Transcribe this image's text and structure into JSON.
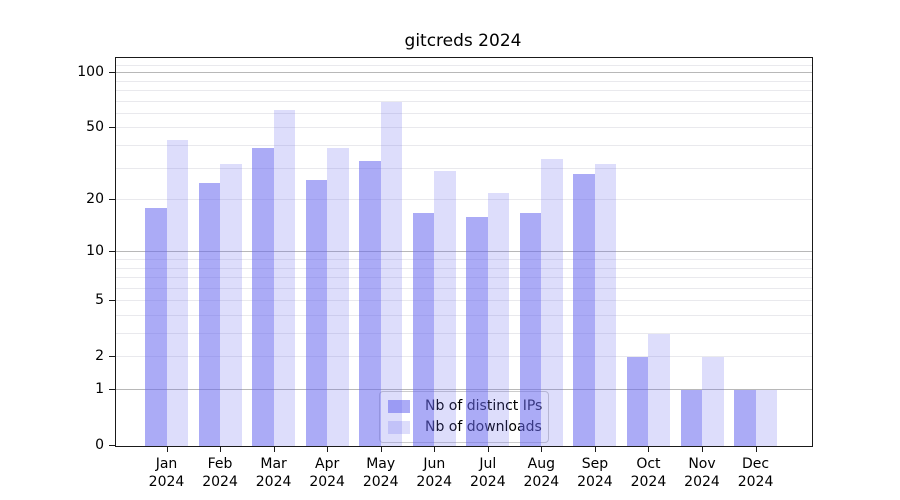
{
  "chart_data": {
    "type": "bar",
    "title": "gitcreds 2024",
    "categories": [
      "Jan",
      "Feb",
      "Mar",
      "Apr",
      "May",
      "Jun",
      "Jul",
      "Aug",
      "Sep",
      "Oct",
      "Nov",
      "Dec"
    ],
    "year": "2024",
    "series": [
      {
        "name": "Nb of distinct IPs",
        "color": "rgba(102,102,238,0.55)",
        "values": [
          18,
          25,
          39,
          26,
          33,
          17,
          16,
          17,
          28,
          2,
          1,
          1
        ]
      },
      {
        "name": "Nb of downloads",
        "color": "rgba(102,102,238,0.22)",
        "values": [
          43,
          32,
          63,
          39,
          70,
          29,
          22,
          34,
          32,
          3,
          2,
          1
        ]
      }
    ],
    "scale": "log1p",
    "ylim": [
      0,
      121
    ],
    "yticks": [
      0,
      1,
      2,
      5,
      10,
      20,
      50,
      100
    ],
    "xlabel": "",
    "ylabel": "",
    "grid": {
      "major_values": [
        1,
        10,
        100
      ],
      "minor_values": [
        2,
        3,
        4,
        5,
        6,
        7,
        8,
        9,
        20,
        30,
        40,
        50,
        60,
        70,
        80,
        90,
        110
      ],
      "major_color": "#b8b8b8",
      "minor_color": "#e9e9ed"
    },
    "legend_position": "bottom-center"
  }
}
